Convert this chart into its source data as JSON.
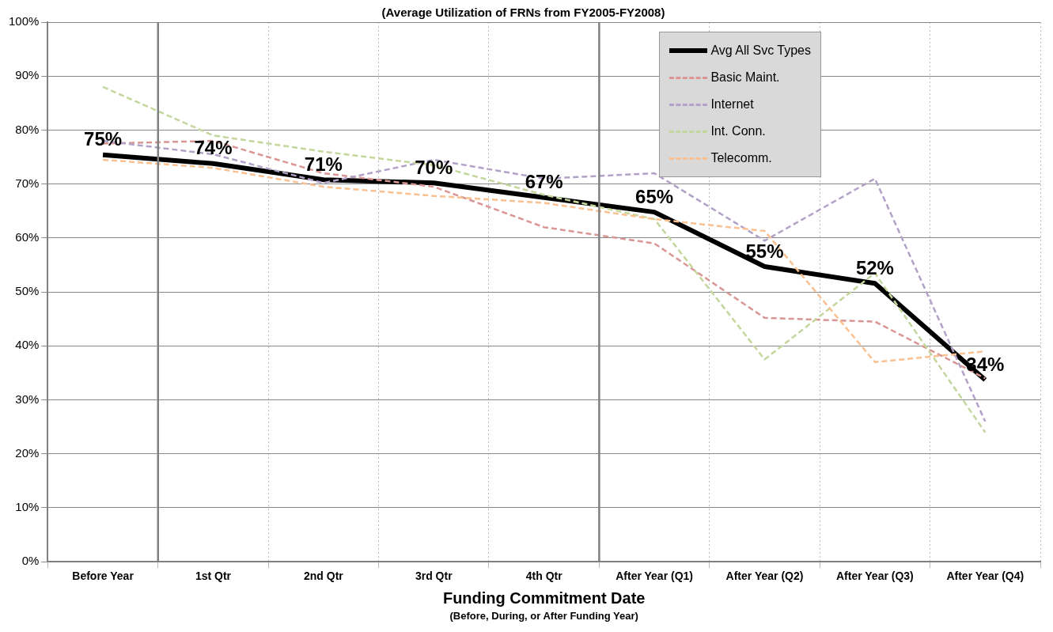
{
  "chart_data": {
    "type": "line",
    "title": "(Average Utilization of FRNs from FY2005-FY2008)",
    "xlabel": "Funding Commitment Date",
    "annotations": [
      "(Before, During, or After Funding Year)"
    ],
    "categories": [
      "Before Year",
      "1st Qtr",
      "2nd Qtr",
      "3rd Qtr",
      "4th Qtr",
      "After Year (Q1)",
      "After Year (Q2)",
      "After Year (Q3)",
      "After Year (Q4)"
    ],
    "series": [
      {
        "name": "Avg All Svc Types",
        "color": "#000000",
        "line_style": "solid",
        "values": [
          75.4,
          73.8,
          70.8,
          70.2,
          67.5,
          64.8,
          54.7,
          51.6,
          33.7
        ],
        "value_labels": [
          "75%",
          "74%",
          "71%",
          "70%",
          "67%",
          "65%",
          "55%",
          "52%",
          "34%"
        ]
      },
      {
        "name": "Basic Maint.",
        "color": "#d99694",
        "line_style": "dashed",
        "values": [
          77.5,
          78,
          72,
          69.5,
          62,
          59,
          45.2,
          44.5,
          34
        ]
      },
      {
        "name": "Internet",
        "color": "#b3a2c7",
        "line_style": "dashed",
        "values": [
          78,
          75.5,
          70.2,
          74.5,
          71,
          72,
          59.5,
          71,
          26
        ]
      },
      {
        "name": "Int. Conn.",
        "color": "#c3d69b",
        "line_style": "dashed",
        "values": [
          88,
          79,
          76,
          73.5,
          68,
          63.5,
          37.5,
          53.5,
          24
        ]
      },
      {
        "name": "Telecomm.",
        "color": "#fac090",
        "line_style": "dashed",
        "values": [
          74.5,
          73,
          69.5,
          67.8,
          66.5,
          63.5,
          61.3,
          37,
          39
        ]
      }
    ],
    "ylim": [
      0,
      100
    ],
    "yticks": [
      {
        "value": 0,
        "label": "0%"
      },
      {
        "value": 10,
        "label": "10%"
      },
      {
        "value": 20,
        "label": "20%"
      },
      {
        "value": 30,
        "label": "30%"
      },
      {
        "value": 40,
        "label": "40%"
      },
      {
        "value": 50,
        "label": "50%"
      },
      {
        "value": 60,
        "label": "60%"
      },
      {
        "value": 70,
        "label": "70%"
      },
      {
        "value": 80,
        "label": "80%"
      },
      {
        "value": 90,
        "label": "90%"
      },
      {
        "value": 100,
        "label": "100%"
      }
    ],
    "grid": true,
    "legend": "top right",
    "marker": "none"
  }
}
